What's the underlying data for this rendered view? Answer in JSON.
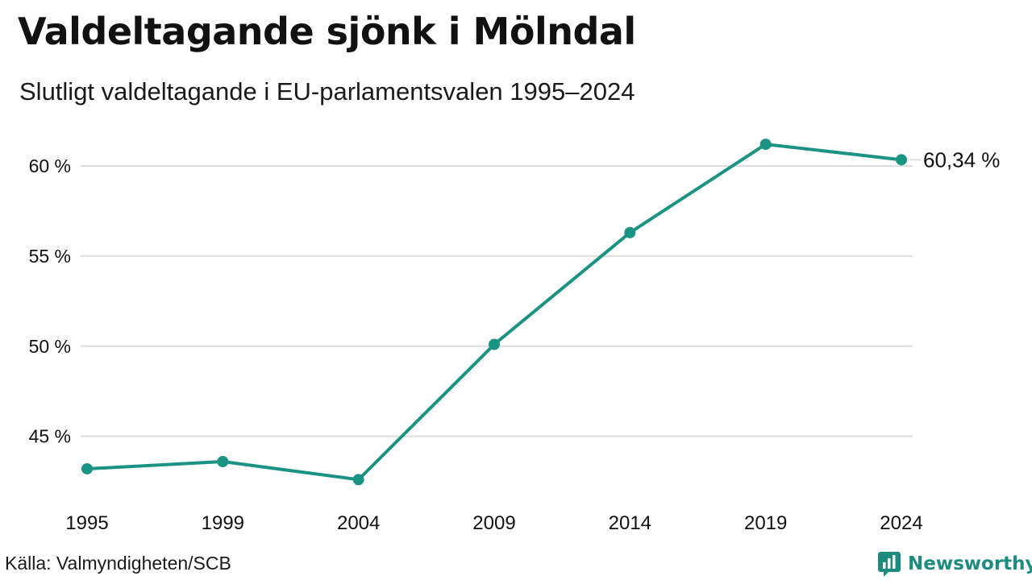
{
  "title": "Valdeltagande sjönk i Mölndal",
  "subtitle": "Slutligt valdeltagande i EU-parlamentsvalen 1995–2024",
  "source": "Källa: Valmyndigheten/SCB",
  "brand": {
    "name": "Newsworthy",
    "icon": "newsworthy-logo-icon",
    "color": "#1b8c7e"
  },
  "colors": {
    "line": "#1b9384",
    "grid": "#dddddd",
    "text": "#111111"
  },
  "chart_data": {
    "type": "line",
    "x": [
      "1995",
      "1999",
      "2004",
      "2009",
      "2014",
      "2019",
      "2024"
    ],
    "series": [
      {
        "values": [
          43.2,
          43.6,
          42.6,
          50.1,
          56.3,
          61.2,
          60.34
        ]
      }
    ],
    "ylim": [
      41.5,
      62.5
    ],
    "yticks": [
      45,
      50,
      55,
      60
    ],
    "ytick_labels": [
      "45 %",
      "50 %",
      "55 %",
      "60 %"
    ],
    "end_label": "60,34 %",
    "grid": true,
    "xlabel": "",
    "ylabel": ""
  }
}
